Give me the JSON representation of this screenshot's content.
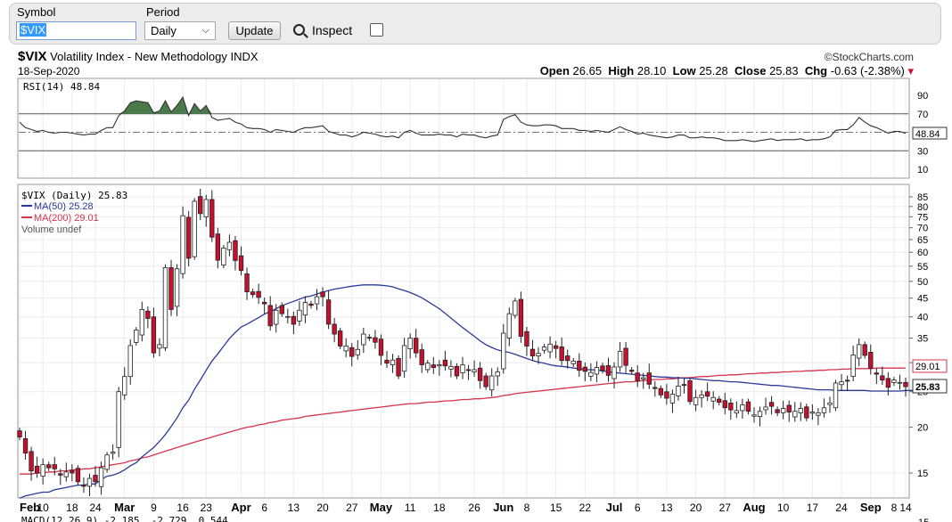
{
  "toolbar": {
    "symbol_label": "Symbol",
    "symbol_value": "$VIX",
    "period_label": "Period",
    "period_value": "Daily",
    "update_label": "Update",
    "inspect_label": "Inspect"
  },
  "header": {
    "symbol": "$VIX",
    "name": "Volatility Index - New Methodology",
    "exchange": "INDX",
    "date": "18-Sep-2020",
    "brand": "©StockCharts.com",
    "open_label": "Open",
    "open": "26.65",
    "high_label": "High",
    "high": "28.10",
    "low_label": "Low",
    "low": "25.28",
    "close_label": "Close",
    "close": "25.83",
    "chg_label": "Chg",
    "chg": "-0.63 (-2.38%)"
  },
  "colors": {
    "up": "#ffffff",
    "down": "#c8102e",
    "ma50": "#2b3a9a",
    "ma200": "#d6334d",
    "rsi": "#333333",
    "rsi_fill": "#4a7a4a"
  },
  "rsi_panel": {
    "legend": "RSI(14) 48.84",
    "last_value": "48.84",
    "ticks": [
      "90",
      "70",
      "50",
      "30",
      "10"
    ]
  },
  "price_panel": {
    "legend_main": "$VIX (Daily) 25.83",
    "legend_ma50": "MA(50) 25.28",
    "legend_ma200": "MA(200) 29.01",
    "legend_volume": "Volume undef",
    "last_ma200": "29.01",
    "last_close": "25.83",
    "ticks": [
      "85",
      "80",
      "75",
      "70",
      "65",
      "60",
      "55",
      "50",
      "45",
      "40",
      "35",
      "30",
      "25",
      "20",
      "15"
    ]
  },
  "macd_panel": {
    "legend": "MACD(12,26,9) -2.185, -2.729, 0.544"
  },
  "chart_data": {
    "type": "candlestick",
    "scale": "log",
    "ylim": [
      13,
      90
    ],
    "x_ticks": [
      "Feb",
      "10",
      "18",
      "24",
      "Mar",
      "9",
      "16",
      "23",
      "Apr",
      "6",
      "13",
      "20",
      "27",
      "May",
      "11",
      "18",
      "26",
      "Jun",
      "8",
      "15",
      "22",
      "Jul",
      "6",
      "13",
      "20",
      "27",
      "Aug",
      "10",
      "17",
      "24",
      "Sep",
      "8",
      "14"
    ],
    "x_tick_bold": [
      "Feb",
      "Mar",
      "Apr",
      "May",
      "Jun",
      "Jul",
      "Aug",
      "Sep"
    ],
    "close": [
      18.8,
      17.0,
      15.2,
      15.0,
      15.8,
      15.5,
      15.4,
      14.8,
      15.1,
      15.0,
      14.2,
      13.8,
      14.5,
      14.2,
      15.5,
      16.8,
      17.1,
      25.0,
      27.5,
      33.4,
      36.8,
      41.9,
      39.6,
      31.9,
      33.6,
      54.5,
      41.9,
      54.1,
      75.5,
      57.8,
      82.7,
      76.5,
      83.6,
      66.0,
      57.1,
      61.6,
      63.9,
      57.0,
      53.5,
      46.8,
      46.0,
      45.2,
      43.4,
      37.8,
      41.7,
      40.8,
      40.1,
      38.2,
      41.7,
      43.8,
      43.0,
      45.4,
      45.4,
      38.2,
      35.9,
      33.3,
      33.3,
      31.2,
      32.6,
      35.9,
      35.1,
      34.1,
      31.4,
      29.9,
      30.5,
      27.6,
      33.4,
      35.0,
      31.9,
      29.6,
      29.9,
      29.1,
      29.6,
      29.4,
      29.3,
      27.6,
      29.6,
      28.6,
      28.7,
      26.8,
      25.8,
      27.6,
      28.3,
      36.1,
      40.8,
      44.2,
      35.4,
      33.3,
      31.3,
      31.8,
      33.1,
      33.7,
      32.8,
      30.4,
      30.4,
      30.3,
      28.6,
      28.4,
      28.2,
      29.1,
      28.6,
      27.7,
      29.2,
      32.2,
      29.5,
      28.4,
      26.8,
      27.3,
      26.2,
      25.5,
      24.5,
      24.0,
      24.6,
      25.9,
      26.0,
      23.5,
      24.1,
      24.5,
      24.3,
      24.1,
      23.4,
      22.6,
      22.3,
      22.2,
      23.0,
      22.1,
      21.6,
      22.1,
      22.7,
      22.8,
      21.9,
      22.5,
      22.0,
      22.1,
      22.5,
      21.2,
      22.0,
      21.9,
      22.6,
      23.3,
      26.4,
      26.6,
      26.7,
      31.5,
      33.6,
      31.4,
      29.0,
      27.9,
      26.9,
      25.7,
      26.9,
      26.5,
      25.8
    ],
    "ma50": [
      12.8,
      13.0,
      13.1,
      13.2,
      13.3,
      13.3,
      13.5,
      13.6,
      13.7,
      13.8,
      13.9,
      13.9,
      14.0,
      14.0,
      14.4,
      14.7,
      14.8,
      15.0,
      15.3,
      15.7,
      16.0,
      16.6,
      17.1,
      17.6,
      18.3,
      19.1,
      20.1,
      21.2,
      22.6,
      23.7,
      25.4,
      26.9,
      28.6,
      30.3,
      31.7,
      33.3,
      34.9,
      36.3,
      37.5,
      38.2,
      39.0,
      39.8,
      40.7,
      41.4,
      42.1,
      42.9,
      43.5,
      44.1,
      44.7,
      45.3,
      45.6,
      46.2,
      46.7,
      47.2,
      47.6,
      47.9,
      48.2,
      48.5,
      48.7,
      48.9,
      48.9,
      48.9,
      48.8,
      48.6,
      48.3,
      47.7,
      47.2,
      46.6,
      45.9,
      45.1,
      44.1,
      43.1,
      42.1,
      40.9,
      39.7,
      38.5,
      37.4,
      36.4,
      35.4,
      34.4,
      33.6,
      33.0,
      32.5,
      32.2,
      32.0,
      31.6,
      31.2,
      30.8,
      30.4,
      30.1,
      29.9,
      29.6,
      29.4,
      29.3,
      29.2,
      29.0,
      28.9,
      28.7,
      28.7,
      28.6,
      28.5,
      28.3,
      28.2,
      28.1,
      28.0,
      27.9,
      27.8,
      27.7,
      27.6,
      27.5,
      27.4,
      27.4,
      27.3,
      27.3,
      27.2,
      27.2,
      27.1,
      27.0,
      26.9,
      26.8,
      26.8,
      26.7,
      26.6,
      26.6,
      26.5,
      26.4,
      26.3,
      26.2,
      26.1,
      26.0,
      26.0,
      25.9,
      25.8,
      25.7,
      25.6,
      25.5,
      25.4,
      25.3,
      25.3,
      25.3,
      25.2,
      25.2,
      25.2,
      25.2,
      25.2,
      25.2,
      25.1,
      25.1,
      25.1,
      25.1,
      25.1,
      25.1,
      25.2,
      25.2,
      25.28
    ],
    "ma200": [
      14.9,
      14.9,
      14.9,
      15.0,
      15.0,
      15.1,
      15.1,
      15.2,
      15.2,
      15.3,
      15.3,
      15.4,
      15.4,
      15.5,
      15.6,
      15.7,
      15.8,
      15.9,
      16.0,
      16.2,
      16.3,
      16.5,
      16.6,
      16.8,
      17.0,
      17.2,
      17.4,
      17.6,
      17.8,
      18.0,
      18.2,
      18.4,
      18.6,
      18.8,
      19.0,
      19.2,
      19.4,
      19.6,
      19.8,
      20.0,
      20.1,
      20.3,
      20.4,
      20.6,
      20.7,
      20.9,
      21.0,
      21.1,
      21.2,
      21.4,
      21.5,
      21.6,
      21.7,
      21.8,
      21.9,
      22.0,
      22.1,
      22.2,
      22.3,
      22.4,
      22.5,
      22.6,
      22.7,
      22.8,
      22.9,
      23.0,
      23.1,
      23.2,
      23.2,
      23.3,
      23.4,
      23.4,
      23.5,
      23.6,
      23.6,
      23.7,
      23.8,
      23.8,
      23.9,
      23.9,
      24.0,
      24.1,
      24.2,
      24.4,
      24.5,
      24.7,
      24.8,
      24.9,
      25.0,
      25.1,
      25.2,
      25.3,
      25.4,
      25.5,
      25.6,
      25.7,
      25.8,
      25.9,
      26.0,
      26.1,
      26.2,
      26.3,
      26.4,
      26.5,
      26.6,
      26.6,
      26.7,
      26.8,
      26.9,
      27.0,
      27.0,
      27.1,
      27.1,
      27.2,
      27.3,
      27.3,
      27.4,
      27.5,
      27.5,
      27.6,
      27.7,
      27.7,
      27.8,
      27.8,
      27.9,
      28.0,
      28.0,
      28.1,
      28.1,
      28.2,
      28.2,
      28.3,
      28.3,
      28.4,
      28.4,
      28.5,
      28.5,
      28.6,
      28.6,
      28.7,
      28.7,
      28.8,
      28.8,
      28.9,
      28.9,
      28.9,
      28.9,
      29.0,
      29.0,
      29.0,
      29.0,
      29.0,
      29.01
    ],
    "rsi": [
      61,
      55,
      53,
      51,
      52,
      50,
      49,
      50,
      50,
      49,
      48,
      47,
      48,
      48,
      52,
      55,
      55,
      68,
      73,
      82,
      84,
      83,
      82,
      71,
      73,
      84,
      72,
      79,
      88,
      68,
      81,
      73,
      79,
      66,
      63,
      64,
      65,
      61,
      59,
      55,
      54,
      54,
      53,
      50,
      53,
      52,
      51,
      50,
      53,
      55,
      55,
      56,
      57,
      51,
      49,
      47,
      47,
      45,
      47,
      50,
      49,
      48,
      46,
      45,
      46,
      44,
      50,
      52,
      49,
      47,
      47,
      47,
      48,
      47,
      47,
      45,
      48,
      47,
      47,
      45,
      44,
      46,
      47,
      64,
      67,
      69,
      61,
      58,
      57,
      57,
      58,
      58,
      57,
      54,
      54,
      54,
      52,
      52,
      51,
      52,
      51,
      50,
      53,
      56,
      53,
      51,
      48,
      49,
      47,
      46,
      45,
      44,
      45,
      47,
      47,
      44,
      44,
      45,
      44,
      44,
      43,
      41,
      41,
      41,
      42,
      41,
      40,
      41,
      42,
      43,
      41,
      42,
      42,
      42,
      43,
      41,
      42,
      42,
      43,
      45,
      52,
      53,
      53,
      58,
      66,
      61,
      57,
      55,
      52,
      49,
      51,
      51,
      48.84
    ]
  }
}
